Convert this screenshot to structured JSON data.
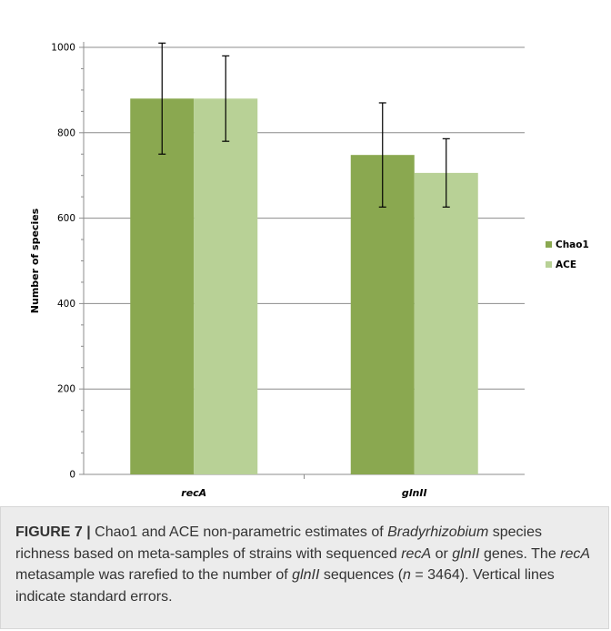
{
  "chart_data": {
    "type": "bar",
    "categories": [
      "recA",
      "glnII"
    ],
    "series": [
      {
        "name": "Chao1",
        "values": [
          880,
          748
        ],
        "error": [
          130,
          122
        ],
        "color": "#8aa850"
      },
      {
        "name": "ACE",
        "values": [
          880,
          706
        ],
        "error": [
          100,
          80
        ],
        "color": "#b8d196"
      }
    ],
    "title": "",
    "xlabel": "",
    "ylabel": "Number of species",
    "ylim": [
      0,
      1000
    ],
    "yticks": [
      0,
      200,
      400,
      600,
      800,
      1000
    ],
    "grid": true,
    "legend_position": "right",
    "error_bars": "standard error"
  },
  "caption": {
    "label": "FIGURE 7 |",
    "segments": [
      {
        "text": " Chao1 and ACE non-parametric estimates of ",
        "italic": false
      },
      {
        "text": "Bradyrhizobium",
        "italic": true
      },
      {
        "text": " species richness based on meta-samples of strains with sequenced ",
        "italic": false
      },
      {
        "text": "recA",
        "italic": true
      },
      {
        "text": " or ",
        "italic": false
      },
      {
        "text": "glnII",
        "italic": true
      },
      {
        "text": " genes. The ",
        "italic": false
      },
      {
        "text": "recA",
        "italic": true
      },
      {
        "text": " metasample was rarefied to the number of ",
        "italic": false
      },
      {
        "text": "glnII",
        "italic": true
      },
      {
        "text": " sequences (",
        "italic": false
      },
      {
        "text": "n",
        "italic": true
      },
      {
        "text": " = 3464). Vertical lines indicate standard errors.",
        "italic": false
      }
    ]
  },
  "colors": {
    "axis": "#8c8c8c",
    "grid": "#8c8c8c",
    "caption_bg": "#ececec",
    "text": "#000000"
  }
}
